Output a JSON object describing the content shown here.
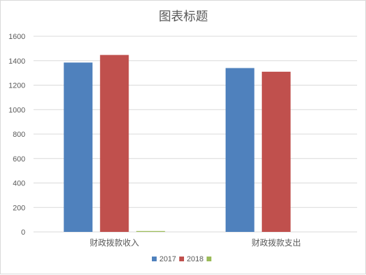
{
  "chart_data": {
    "type": "bar",
    "title": "图表标题",
    "categories": [
      "财政拨款收入",
      "财政拨款支出"
    ],
    "series": [
      {
        "name": "2017",
        "values": [
          1385,
          1340
        ],
        "color": "#4f81bd"
      },
      {
        "name": "2018",
        "values": [
          1447,
          1310
        ],
        "color": "#c0504d"
      },
      {
        "name": "",
        "values": [
          7,
          0
        ],
        "color": "#9bbb59"
      }
    ],
    "ylim": [
      0,
      1600
    ],
    "yticks": [
      "0",
      "200",
      "400",
      "600",
      "800",
      "1000",
      "1200",
      "1400",
      "1600"
    ],
    "grid": true,
    "legend": "bottom"
  }
}
